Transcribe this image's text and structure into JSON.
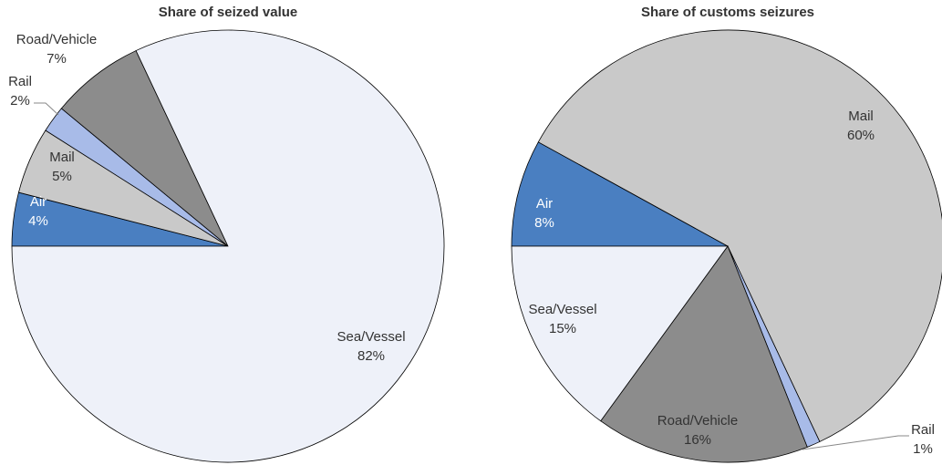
{
  "chart_data": [
    {
      "type": "pie",
      "title": "Share of seized value",
      "categories": [
        "Air",
        "Mail",
        "Rail",
        "Road/Vehicle",
        "Sea/Vessel"
      ],
      "values": [
        4,
        5,
        2,
        7,
        82
      ],
      "value_labels": [
        "4%",
        "5%",
        "2%",
        "7%",
        "82%"
      ],
      "colors": [
        "#4a7fc1",
        "#c9c9c9",
        "#a8bbe8",
        "#8c8c8c",
        "#eef1f9"
      ]
    },
    {
      "type": "pie",
      "title": "Share of customs seizures",
      "categories": [
        "Air",
        "Mail",
        "Rail",
        "Road/Vehicle",
        "Sea/Vessel"
      ],
      "values": [
        8,
        60,
        1,
        16,
        15
      ],
      "value_labels": [
        "8%",
        "60%",
        "1%",
        "16%",
        "15%"
      ],
      "colors": [
        "#4a7fc1",
        "#c9c9c9",
        "#a8bbe8",
        "#8c8c8c",
        "#eef1f9"
      ]
    }
  ]
}
